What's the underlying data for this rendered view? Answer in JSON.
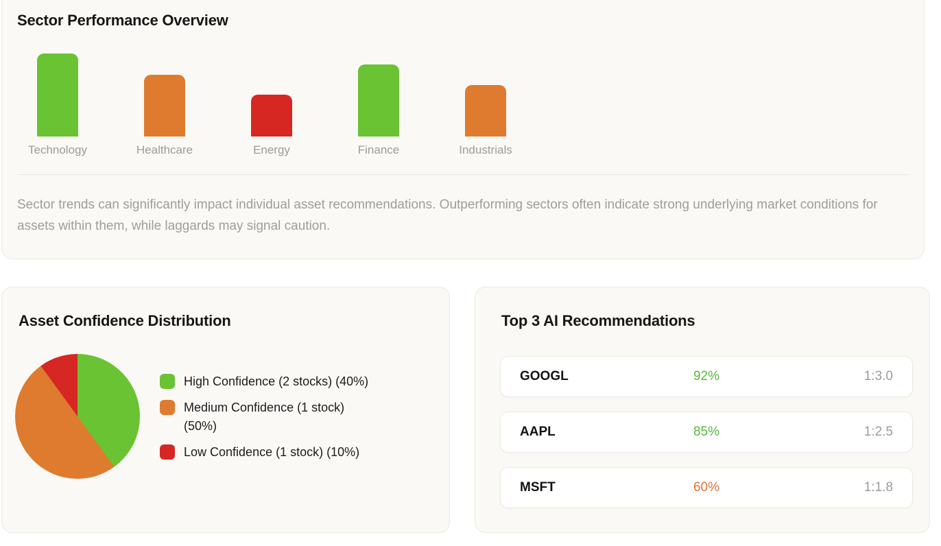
{
  "palette": {
    "green": "#69c332",
    "orange": "#de7b2e",
    "red": "#d62723",
    "text_green": "#56b83a",
    "text_orange": "#df7134",
    "muted_gray": "#9b9b9b"
  },
  "sector_overview": {
    "title": "Sector Performance Overview",
    "description": "Sector trends can significantly impact individual asset recommendations. Outperforming sectors often indicate strong underlying market conditions for assets within them, while laggards may signal caution."
  },
  "chart_data": [
    {
      "type": "bar",
      "title": "Sector Performance Overview",
      "categories": [
        "Technology",
        "Healthcare",
        "Energy",
        "Finance",
        "Industrials"
      ],
      "values_relative_pct": [
        100,
        74,
        50,
        87,
        62
      ],
      "bar_colors": [
        "green",
        "orange",
        "red",
        "green",
        "orange"
      ],
      "xlabel": "",
      "ylabel": "",
      "axis_ticks_shown": false,
      "grid": false,
      "value_labels_shown": false
    },
    {
      "type": "pie",
      "title": "Asset Confidence Distribution",
      "labels": [
        "High Confidence (2 stocks)",
        "Medium Confidence (1 stock)",
        "Low Confidence (1 stock)"
      ],
      "values_pct": [
        40,
        50,
        10
      ],
      "slice_colors": [
        "green",
        "orange",
        "red"
      ],
      "start_angle_deg": 0,
      "direction": "clockwise",
      "legend_position": "right"
    }
  ],
  "confidence_card": {
    "title": "Asset Confidence Distribution",
    "legend": [
      {
        "label": "High Confidence (2 stocks) (40%)",
        "color": "green"
      },
      {
        "label": "Medium Confidence (1 stock)\n(50%)",
        "color": "orange"
      },
      {
        "label": "Low Confidence (1 stock) (10%)",
        "color": "red"
      }
    ]
  },
  "recommendations_card": {
    "title": "Top 3 AI Recommendations",
    "rows": [
      {
        "ticker": "GOOGL",
        "confidence": "92%",
        "confidence_color": "text_green",
        "ratio": "1:3.0"
      },
      {
        "ticker": "AAPL",
        "confidence": "85%",
        "confidence_color": "text_green",
        "ratio": "1:2.5"
      },
      {
        "ticker": "MSFT",
        "confidence": "60%",
        "confidence_color": "text_orange",
        "ratio": "1:1.8"
      }
    ]
  }
}
